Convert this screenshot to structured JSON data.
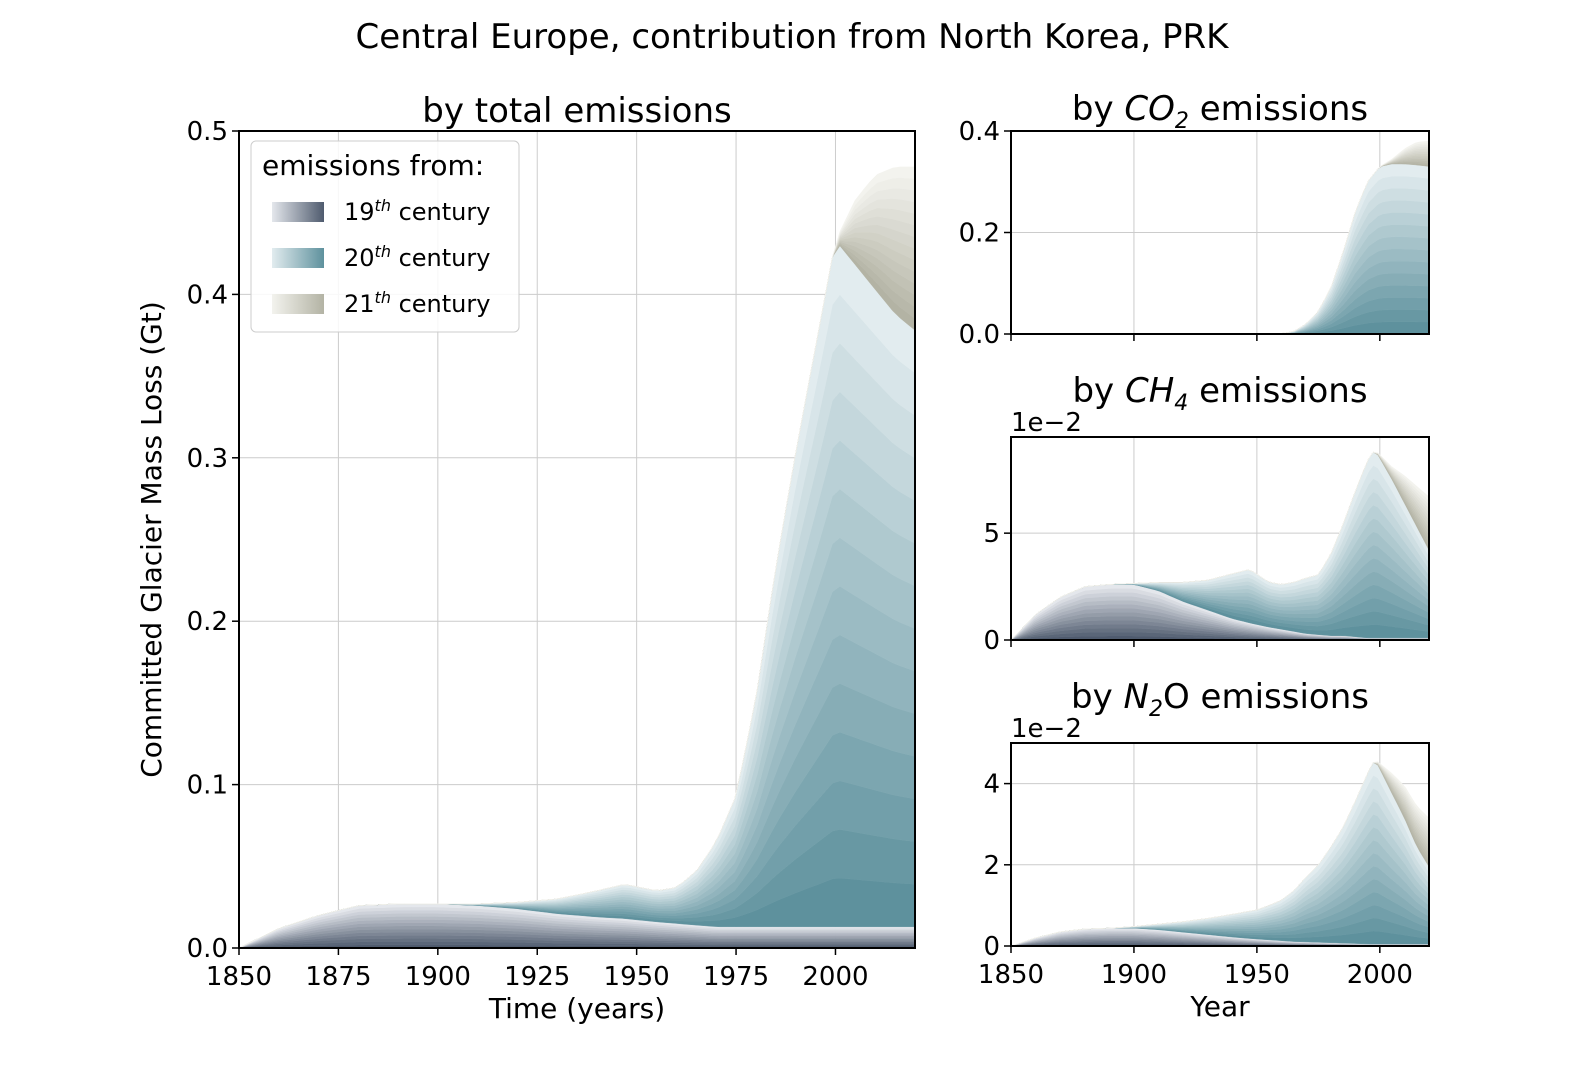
{
  "figure": {
    "suptitle": "Central Europe, contribution from North Korea, PRK"
  },
  "colors": {
    "c19_dark": "#4f5b6e",
    "c19_light": "#e4e7ec",
    "c20_dark": "#5e919d",
    "c20_light": "#e2ecef",
    "c21_dark": "#b3b3a4",
    "c21_light": "#f3f3ee",
    "grid": "#cccccc",
    "axis": "#000000"
  },
  "legend": {
    "title": "emissions from:",
    "items": [
      {
        "prefix": "19",
        "sup": "th",
        "suffix": " century"
      },
      {
        "prefix": "20",
        "sup": "th",
        "suffix": " century"
      },
      {
        "prefix": "21",
        "sup": "th",
        "suffix": " century"
      }
    ]
  },
  "chart_data": [
    {
      "id": "total",
      "type": "area",
      "title": {
        "pre": "by total emissions",
        "sym": "",
        "sub": "",
        "post": ""
      },
      "xlabel": "Time (years)",
      "ylabel": "Committed Glacier Mass Loss (Gt)",
      "xlim": [
        1850,
        2020
      ],
      "ylim": [
        0,
        0.5
      ],
      "xticks": [
        1850,
        1875,
        1900,
        1925,
        1950,
        1975,
        2000
      ],
      "yticks": [
        0.0,
        0.1,
        0.2,
        0.3,
        0.4,
        0.5
      ],
      "ytick_labels": [
        "0.0",
        "0.1",
        "0.2",
        "0.3",
        "0.4",
        "0.5"
      ],
      "exponent_label": "",
      "show_xtick_labels": true,
      "x": [
        1850,
        1860,
        1870,
        1880,
        1890,
        1900,
        1910,
        1920,
        1930,
        1940,
        1947,
        1955,
        1960,
        1965,
        1970,
        1975,
        1980,
        1985,
        1990,
        1995,
        2000,
        2005,
        2010,
        2015,
        2020
      ],
      "series": [
        {
          "century": 19,
          "values": [
            0,
            0.012,
            0.02,
            0.026,
            0.027,
            0.027,
            0.026,
            0.024,
            0.021,
            0.019,
            0.018,
            0.016,
            0.015,
            0.014,
            0.013,
            0.013,
            0.013,
            0.013,
            0.013,
            0.013,
            0.013,
            0.013,
            0.013,
            0.013,
            0.013
          ]
        },
        {
          "century": 20,
          "values": [
            0,
            0,
            0,
            0,
            0,
            0,
            0.001,
            0.004,
            0.009,
            0.016,
            0.021,
            0.019,
            0.022,
            0.033,
            0.052,
            0.08,
            0.14,
            0.22,
            0.29,
            0.355,
            0.42,
            0.405,
            0.39,
            0.375,
            0.365
          ]
        },
        {
          "century": 21,
          "values": [
            0,
            0,
            0,
            0,
            0,
            0,
            0,
            0,
            0,
            0,
            0,
            0,
            0,
            0,
            0,
            0,
            0,
            0,
            0,
            0,
            0,
            0.04,
            0.07,
            0.09,
            0.1
          ]
        }
      ]
    },
    {
      "id": "co2",
      "type": "area",
      "title": {
        "pre": "by ",
        "sym": "CO",
        "sub": "2",
        "post": " emissions"
      },
      "xlabel": "",
      "ylabel": "",
      "xlim": [
        1850,
        2020
      ],
      "ylim": [
        0,
        0.4
      ],
      "xticks": [
        1850,
        1900,
        1950,
        2000
      ],
      "yticks": [
        0.0,
        0.2,
        0.4
      ],
      "ytick_labels": [
        "0.0",
        "0.2",
        "0.4"
      ],
      "exponent_label": "",
      "show_xtick_labels": false,
      "x": [
        1850,
        1900,
        1950,
        1955,
        1960,
        1965,
        1970,
        1975,
        1980,
        1985,
        1990,
        1995,
        2000,
        2005,
        2010,
        2015,
        2020
      ],
      "series": [
        {
          "century": 19,
          "values": [
            0,
            0,
            0,
            0,
            0,
            0,
            0,
            0,
            0,
            0,
            0,
            0,
            0,
            0,
            0,
            0,
            0
          ]
        },
        {
          "century": 20,
          "values": [
            0,
            0,
            0,
            0,
            0.001,
            0.005,
            0.02,
            0.045,
            0.09,
            0.16,
            0.24,
            0.3,
            0.33,
            0.335,
            0.335,
            0.333,
            0.33
          ]
        },
        {
          "century": 21,
          "values": [
            0,
            0,
            0,
            0,
            0,
            0,
            0,
            0,
            0,
            0,
            0,
            0,
            0,
            0.01,
            0.03,
            0.045,
            0.05
          ]
        }
      ]
    },
    {
      "id": "ch4",
      "type": "area",
      "title": {
        "pre": "by ",
        "sym": "CH",
        "sub": "4",
        "post": " emissions"
      },
      "xlabel": "",
      "ylabel": "",
      "xlim": [
        1850,
        2020
      ],
      "ylim": [
        0,
        9.5
      ],
      "xticks": [
        1850,
        1900,
        1950,
        2000
      ],
      "yticks": [
        0,
        5
      ],
      "ytick_labels": [
        "0",
        "5"
      ],
      "exponent_label": "1e−2",
      "show_xtick_labels": false,
      "x": [
        1850,
        1860,
        1870,
        1880,
        1890,
        1900,
        1910,
        1920,
        1930,
        1940,
        1947,
        1955,
        1960,
        1965,
        1970,
        1975,
        1980,
        1985,
        1990,
        1995,
        1998,
        2005,
        2010,
        2015,
        2020
      ],
      "series": [
        {
          "century": 19,
          "values": [
            0,
            1.2,
            2.0,
            2.5,
            2.6,
            2.6,
            2.3,
            1.8,
            1.4,
            1.0,
            0.8,
            0.6,
            0.5,
            0.4,
            0.3,
            0.25,
            0.2,
            0.2,
            0.15,
            0.1,
            0.1,
            0.1,
            0.1,
            0.1,
            0.1
          ]
        },
        {
          "century": 20,
          "values": [
            0,
            0,
            0,
            0,
            0,
            0.05,
            0.4,
            0.9,
            1.4,
            2.1,
            2.5,
            2.1,
            2.1,
            2.3,
            2.6,
            2.8,
            3.8,
            5.2,
            6.8,
            8.3,
            8.8,
            7.4,
            6.3,
            5.2,
            4.1
          ]
        },
        {
          "century": 21,
          "values": [
            0,
            0,
            0,
            0,
            0,
            0,
            0,
            0,
            0,
            0,
            0,
            0,
            0,
            0,
            0,
            0,
            0,
            0,
            0,
            0,
            0,
            0.6,
            1.3,
            1.9,
            2.5
          ]
        }
      ]
    },
    {
      "id": "n2o",
      "type": "area",
      "title": {
        "pre": "by ",
        "sym": "N",
        "sub": "2",
        "post": "O emissions"
      },
      "xlabel": "Year",
      "ylabel": "",
      "xlim": [
        1850,
        2020
      ],
      "ylim": [
        0,
        5.0
      ],
      "xticks": [
        1850,
        1900,
        1950,
        2000
      ],
      "yticks": [
        0,
        2,
        4
      ],
      "ytick_labels": [
        "0",
        "2",
        "4"
      ],
      "exponent_label": "1e−2",
      "show_xtick_labels": true,
      "x": [
        1850,
        1860,
        1870,
        1880,
        1890,
        1900,
        1910,
        1920,
        1930,
        1940,
        1950,
        1955,
        1960,
        1965,
        1970,
        1975,
        1980,
        1985,
        1990,
        1995,
        1998,
        2005,
        2010,
        2015,
        2020
      ],
      "series": [
        {
          "century": 19,
          "values": [
            0,
            0.2,
            0.35,
            0.42,
            0.44,
            0.44,
            0.4,
            0.34,
            0.28,
            0.22,
            0.17,
            0.15,
            0.13,
            0.11,
            0.1,
            0.09,
            0.08,
            0.07,
            0.06,
            0.05,
            0.05,
            0.05,
            0.05,
            0.05,
            0.05
          ]
        },
        {
          "century": 20,
          "values": [
            0,
            0,
            0,
            0,
            0,
            0.04,
            0.14,
            0.26,
            0.4,
            0.56,
            0.72,
            0.85,
            1.0,
            1.25,
            1.6,
            1.9,
            2.35,
            2.85,
            3.5,
            4.2,
            4.55,
            3.7,
            3.1,
            2.4,
            1.9
          ]
        },
        {
          "century": 21,
          "values": [
            0,
            0,
            0,
            0,
            0,
            0,
            0,
            0,
            0,
            0,
            0,
            0,
            0,
            0,
            0,
            0,
            0,
            0,
            0,
            0,
            0,
            0.5,
            0.8,
            1.0,
            1.2
          ]
        }
      ]
    }
  ]
}
